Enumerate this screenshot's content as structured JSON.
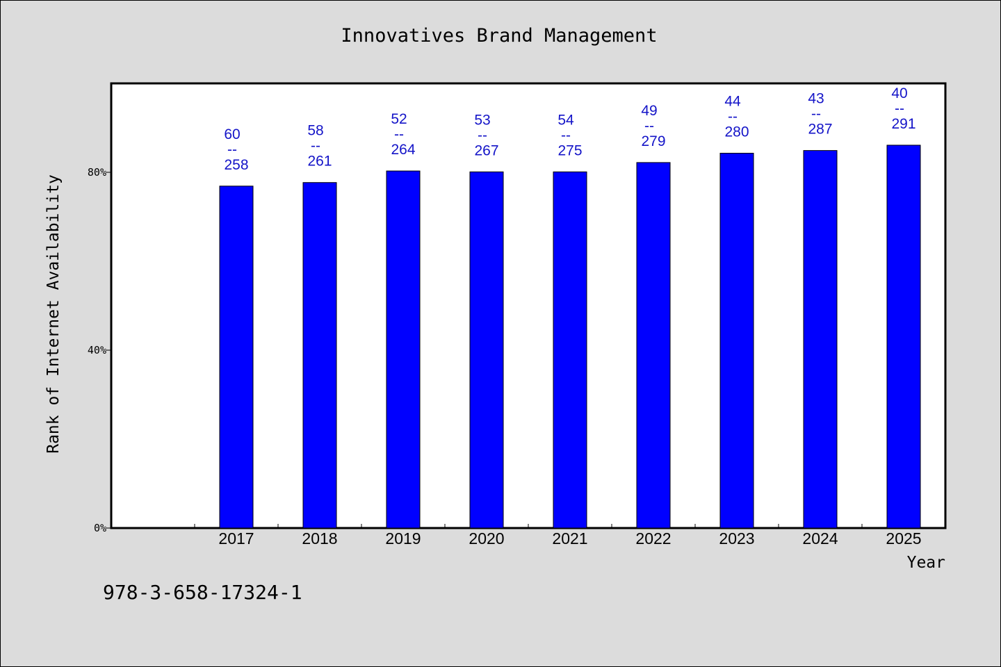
{
  "chart_data": {
    "type": "bar",
    "title": "Innovatives Brand Management",
    "xlabel": "Year",
    "ylabel": "Rank of Internet Availability",
    "categories": [
      "2017",
      "2018",
      "2019",
      "2020",
      "2021",
      "2022",
      "2023",
      "2024",
      "2025"
    ],
    "values": [
      76.9,
      77.7,
      80.3,
      80.1,
      80.1,
      82.2,
      84.3,
      84.9,
      86.1
    ],
    "bar_labels_top": [
      "60",
      "58",
      "52",
      "53",
      "54",
      "49",
      "44",
      "43",
      "40"
    ],
    "bar_labels_bottom": [
      "258",
      "261",
      "264",
      "267",
      "275",
      "279",
      "280",
      "287",
      "291"
    ],
    "label_separator": "--",
    "ylim": [
      0,
      100
    ],
    "yticks": [
      0,
      40,
      80
    ],
    "ytick_labels": [
      "0%",
      "40%",
      "80%"
    ],
    "grid": false,
    "legend": "none",
    "colors": {
      "bar": "#0000ff",
      "label": "#1414c8",
      "background": "#dcdcdc",
      "plot": "#ffffff"
    }
  },
  "footer": {
    "code": "978-3-658-17324-1"
  }
}
